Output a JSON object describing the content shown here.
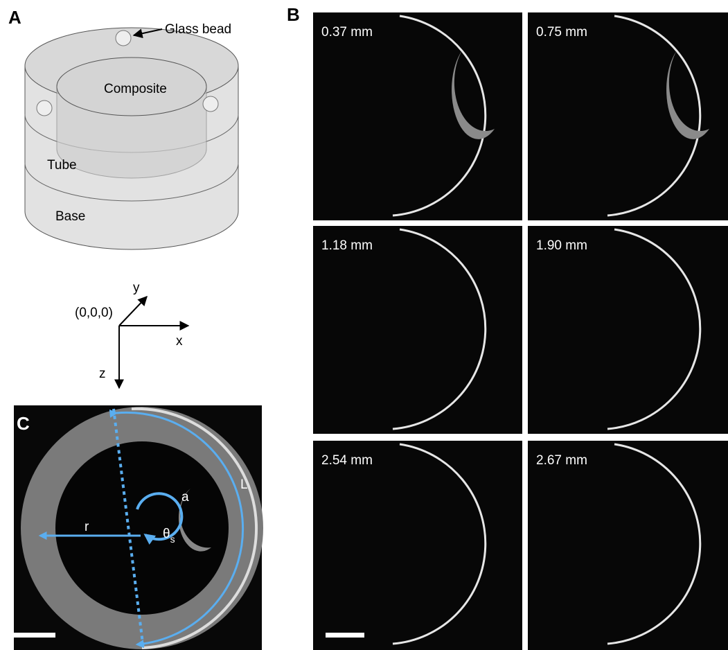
{
  "panel_a": {
    "label": "A",
    "bead_label": "Glass bead",
    "composite_label": "Composite",
    "tube_label": "Tube",
    "base_label": "Base",
    "axis_y": "y",
    "origin": "(0,0,0)",
    "axis_x": "x",
    "axis_z": "z"
  },
  "panel_b": {
    "label": "B",
    "slices": [
      "0.37 mm",
      "0.75 mm",
      "1.18 mm",
      "1.90 mm",
      "2.54 mm",
      "2.67 mm"
    ]
  },
  "panel_c": {
    "label": "C",
    "radius_label": "r",
    "theta_label": "θ",
    "theta_subscript": "s",
    "a_label": "a",
    "l_label": "L"
  }
}
